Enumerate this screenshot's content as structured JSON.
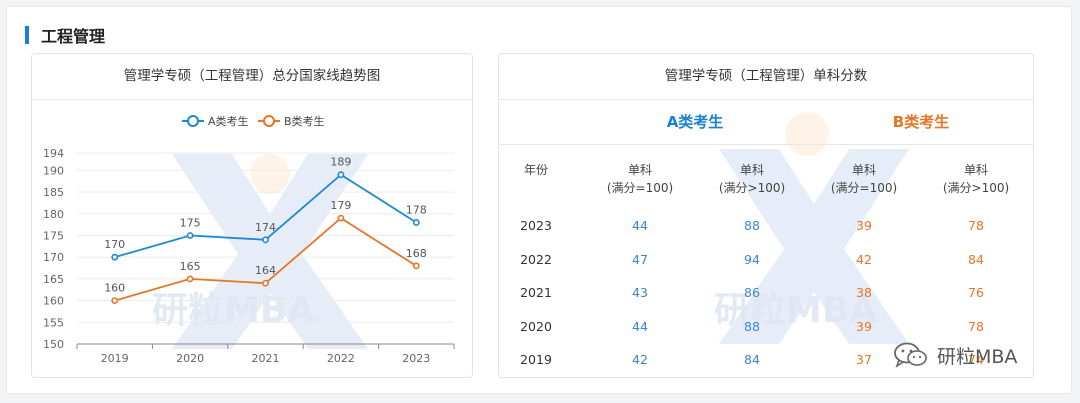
{
  "section": {
    "title": "工程管理"
  },
  "chart_panel": {
    "title": "管理学专硕（工程管理）总分国家线趋势图"
  },
  "table_panel": {
    "title": "管理学专硕（工程管理）单科分数"
  },
  "watermark": {
    "text": "研粒MBA"
  },
  "footer_watermark": {
    "text": "研粒MBA",
    "icon": "wechat-icon"
  },
  "colors": {
    "a": "#1a8ad6",
    "b": "#e77524",
    "accent": "#1a7fd4"
  },
  "chart_data": {
    "type": "line",
    "categories": [
      "2019",
      "2020",
      "2021",
      "2022",
      "2023"
    ],
    "series": [
      {
        "name": "A类考生",
        "values": [
          170,
          175,
          174,
          189,
          178
        ],
        "color": "#1a8ad6"
      },
      {
        "name": "B类考生",
        "values": [
          160,
          165,
          164,
          179,
          168
        ],
        "color": "#e77524"
      }
    ],
    "ylim": [
      150,
      194
    ],
    "yticks": [
      150,
      155,
      160,
      165,
      170,
      175,
      180,
      185,
      190,
      194
    ],
    "legend": "top-center",
    "grid": true
  },
  "table": {
    "groups": {
      "a": "A类考生",
      "b": "B类考生"
    },
    "headers": [
      {
        "line1": "年份",
        "line2": ""
      },
      {
        "line1": "单科",
        "line2": "(满分=100)"
      },
      {
        "line1": "单科",
        "line2": "(满分>100)"
      },
      {
        "line1": "单科",
        "line2": "(满分=100)"
      },
      {
        "line1": "单科",
        "line2": "(满分>100)"
      }
    ],
    "rows": [
      [
        "2023",
        "44",
        "88",
        "39",
        "78"
      ],
      [
        "2022",
        "47",
        "94",
        "42",
        "84"
      ],
      [
        "2021",
        "43",
        "86",
        "38",
        "76"
      ],
      [
        "2020",
        "44",
        "88",
        "39",
        "78"
      ],
      [
        "2019",
        "42",
        "84",
        "37",
        "74"
      ]
    ]
  }
}
